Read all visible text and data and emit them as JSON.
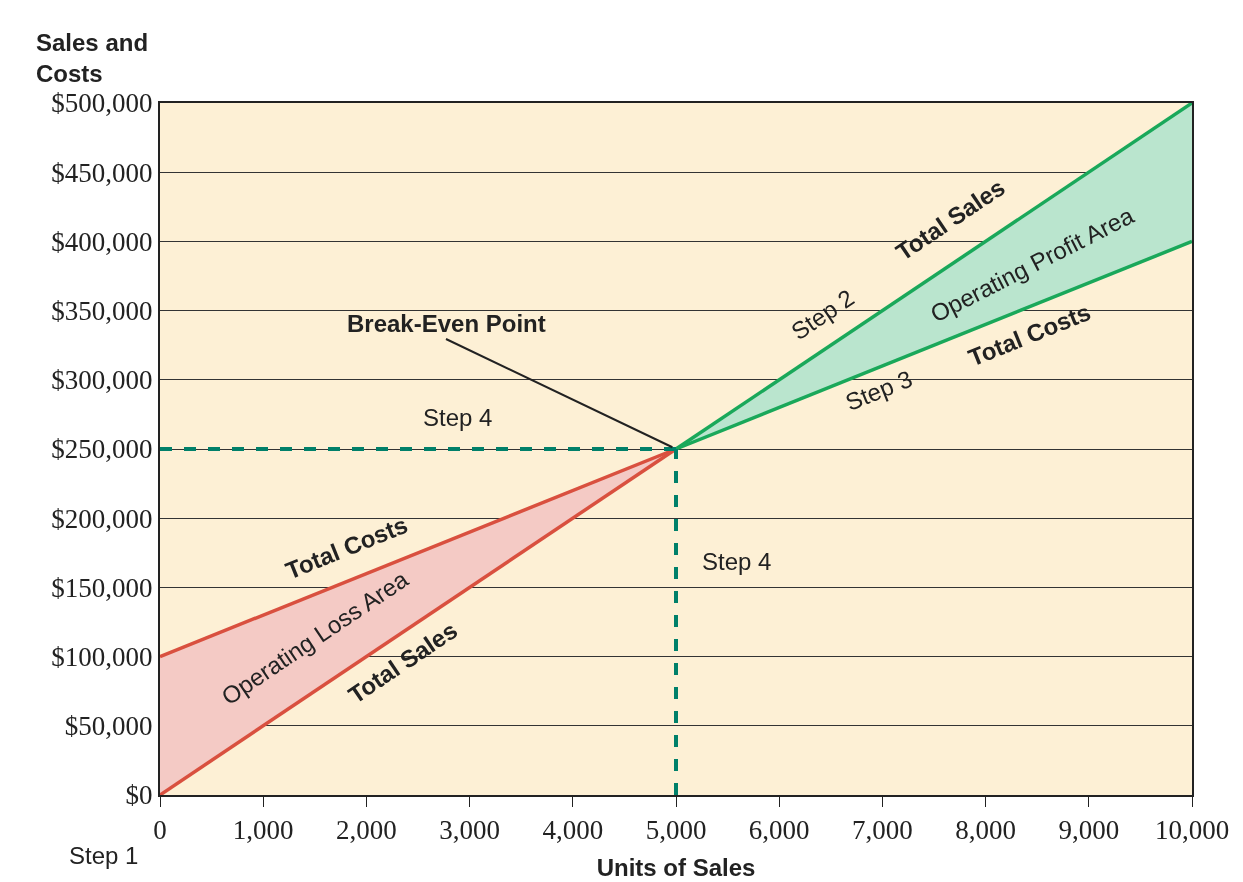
{
  "chart_data": {
    "type": "line",
    "xlabel": "Units of Sales",
    "ylabel": "Sales and Costs",
    "xlim": [
      0,
      10000
    ],
    "ylim": [
      0,
      500000
    ],
    "xticks": [
      0,
      {
        "value": 1000,
        "label": "1,000"
      },
      {
        "value": 2000,
        "label": "2,000"
      },
      {
        "value": 3000,
        "label": "3,000"
      },
      {
        "value": 4000,
        "label": "4,000"
      },
      {
        "value": 5000,
        "label": "5,000"
      },
      {
        "value": 6000,
        "label": "6,000"
      },
      {
        "value": 7000,
        "label": "7,000"
      },
      {
        "value": 8000,
        "label": "8,000"
      },
      {
        "value": 9000,
        "label": "9,000"
      },
      {
        "value": 10000,
        "label": "10,000"
      }
    ],
    "yticks": [
      {
        "value": 0,
        "label": "$0"
      },
      {
        "value": 50000,
        "label": "$50,000"
      },
      {
        "value": 100000,
        "label": "$100,000"
      },
      {
        "value": 150000,
        "label": "$150,000"
      },
      {
        "value": 200000,
        "label": "$200,000"
      },
      {
        "value": 250000,
        "label": "$250,000"
      },
      {
        "value": 300000,
        "label": "$300,000"
      },
      {
        "value": 350000,
        "label": "$350,000"
      },
      {
        "value": 400000,
        "label": "$400,000"
      },
      {
        "value": 450000,
        "label": "$450,000"
      },
      {
        "value": 500000,
        "label": "$500,000"
      }
    ],
    "grid": "y",
    "series": [
      {
        "x": [
          0,
          5000
        ],
        "values": [
          100000,
          250000
        ],
        "color": "#d9503f",
        "lower": [
          0,
          250000
        ],
        "upper": [
          100000,
          250000
        ]
      },
      {
        "x": [
          0,
          5000
        ],
        "values": [
          0,
          250000
        ],
        "color": "#d9503f"
      },
      {
        "x": [
          5000,
          10000
        ],
        "values": [
          250000,
          500000
        ],
        "color": "#1aa85a",
        "lower": [
          250000,
          400000
        ],
        "upper": [
          250000,
          500000
        ]
      },
      {
        "x": [
          5000,
          10000
        ],
        "values": [
          250000,
          400000
        ],
        "color": "#1aa85a"
      },
      {
        "x": [
          0,
          5000
        ],
        "values": [
          250000,
          250000
        ],
        "color": "#00806a",
        "line_style": "dashed"
      },
      {
        "x": [
          5000,
          5000
        ],
        "values": [
          0,
          250000
        ],
        "color": "#00806a",
        "line_style": "dashed"
      }
    ],
    "annotations": [
      {
        "text": "Break-Even Point",
        "x": 5000,
        "y": 250000
      },
      "Step 4",
      "Step 4",
      "Total Costs",
      "Operating Loss Area",
      "Total Sales",
      "Step 2",
      "Total Sales",
      "Operating Profit Area",
      "Total Costs",
      "Step 3",
      "Step 1"
    ]
  }
}
